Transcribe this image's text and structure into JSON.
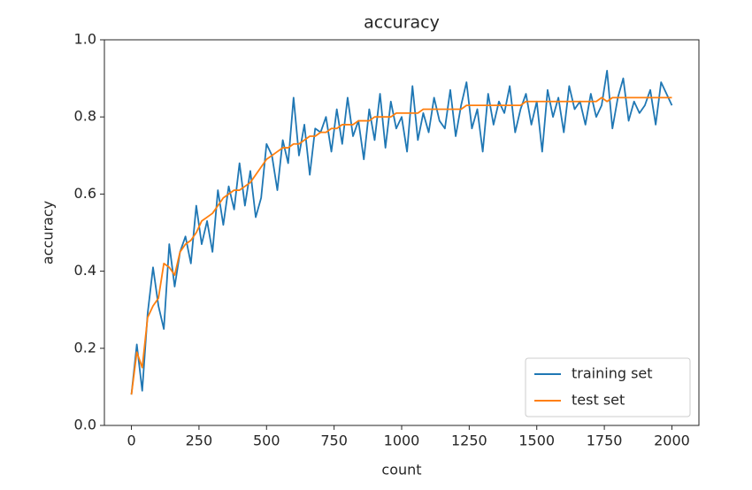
{
  "chart_data": {
    "type": "line",
    "title": "accuracy",
    "x_label": "count",
    "y_label": "accuracy",
    "x": [
      0,
      20,
      40,
      60,
      80,
      100,
      120,
      140,
      160,
      180,
      200,
      220,
      240,
      260,
      280,
      300,
      320,
      340,
      360,
      380,
      400,
      420,
      440,
      460,
      480,
      500,
      520,
      540,
      560,
      580,
      600,
      620,
      640,
      660,
      680,
      700,
      720,
      740,
      760,
      780,
      800,
      820,
      840,
      860,
      880,
      900,
      920,
      940,
      960,
      980,
      1000,
      1020,
      1040,
      1060,
      1080,
      1100,
      1120,
      1140,
      1160,
      1180,
      1200,
      1220,
      1240,
      1260,
      1280,
      1300,
      1320,
      1340,
      1360,
      1380,
      1400,
      1420,
      1440,
      1460,
      1480,
      1500,
      1520,
      1540,
      1560,
      1580,
      1600,
      1620,
      1640,
      1660,
      1680,
      1700,
      1720,
      1740,
      1760,
      1780,
      1800,
      1820,
      1840,
      1860,
      1880,
      1900,
      1920,
      1940,
      1960,
      1980,
      2000
    ],
    "series": [
      {
        "name": "training set",
        "color": "#1f77b4",
        "values": [
          0.08,
          0.21,
          0.09,
          0.29,
          0.41,
          0.31,
          0.25,
          0.47,
          0.36,
          0.45,
          0.49,
          0.42,
          0.57,
          0.47,
          0.53,
          0.45,
          0.61,
          0.52,
          0.62,
          0.56,
          0.68,
          0.57,
          0.66,
          0.54,
          0.59,
          0.73,
          0.7,
          0.61,
          0.74,
          0.68,
          0.85,
          0.7,
          0.78,
          0.65,
          0.77,
          0.76,
          0.8,
          0.71,
          0.82,
          0.73,
          0.85,
          0.75,
          0.79,
          0.69,
          0.82,
          0.74,
          0.86,
          0.72,
          0.84,
          0.77,
          0.8,
          0.71,
          0.88,
          0.74,
          0.81,
          0.76,
          0.85,
          0.79,
          0.77,
          0.87,
          0.75,
          0.83,
          0.89,
          0.77,
          0.82,
          0.71,
          0.86,
          0.78,
          0.84,
          0.81,
          0.88,
          0.76,
          0.82,
          0.86,
          0.78,
          0.84,
          0.71,
          0.87,
          0.8,
          0.85,
          0.76,
          0.88,
          0.82,
          0.84,
          0.78,
          0.86,
          0.8,
          0.83,
          0.92,
          0.77,
          0.85,
          0.9,
          0.79,
          0.84,
          0.81,
          0.83,
          0.87,
          0.78,
          0.89,
          0.86,
          0.83
        ]
      },
      {
        "name": "test set",
        "color": "#ff7f0e",
        "values": [
          0.08,
          0.19,
          0.15,
          0.28,
          0.31,
          0.33,
          0.42,
          0.41,
          0.39,
          0.45,
          0.47,
          0.48,
          0.5,
          0.53,
          0.54,
          0.55,
          0.57,
          0.59,
          0.6,
          0.61,
          0.61,
          0.62,
          0.63,
          0.65,
          0.67,
          0.69,
          0.7,
          0.71,
          0.72,
          0.72,
          0.73,
          0.73,
          0.74,
          0.75,
          0.75,
          0.76,
          0.76,
          0.77,
          0.77,
          0.78,
          0.78,
          0.78,
          0.79,
          0.79,
          0.79,
          0.8,
          0.8,
          0.8,
          0.8,
          0.81,
          0.81,
          0.81,
          0.81,
          0.81,
          0.82,
          0.82,
          0.82,
          0.82,
          0.82,
          0.82,
          0.82,
          0.82,
          0.83,
          0.83,
          0.83,
          0.83,
          0.83,
          0.83,
          0.83,
          0.83,
          0.83,
          0.83,
          0.83,
          0.84,
          0.84,
          0.84,
          0.84,
          0.84,
          0.84,
          0.84,
          0.84,
          0.84,
          0.84,
          0.84,
          0.84,
          0.84,
          0.84,
          0.85,
          0.84,
          0.85,
          0.85,
          0.85,
          0.85,
          0.85,
          0.85,
          0.85,
          0.85,
          0.85,
          0.85,
          0.85,
          0.85
        ]
      }
    ],
    "xlim": [
      -100,
      2100
    ],
    "ylim": [
      0,
      1
    ],
    "xticks": [
      0,
      250,
      500,
      750,
      1000,
      1250,
      1500,
      1750,
      2000
    ],
    "yticks": [
      {
        "value": 0,
        "label": "0.0"
      },
      0.2,
      0.4,
      0.6,
      0.8,
      {
        "value": 1,
        "label": "1.0"
      }
    ],
    "grid": false,
    "legend": "lower right"
  }
}
